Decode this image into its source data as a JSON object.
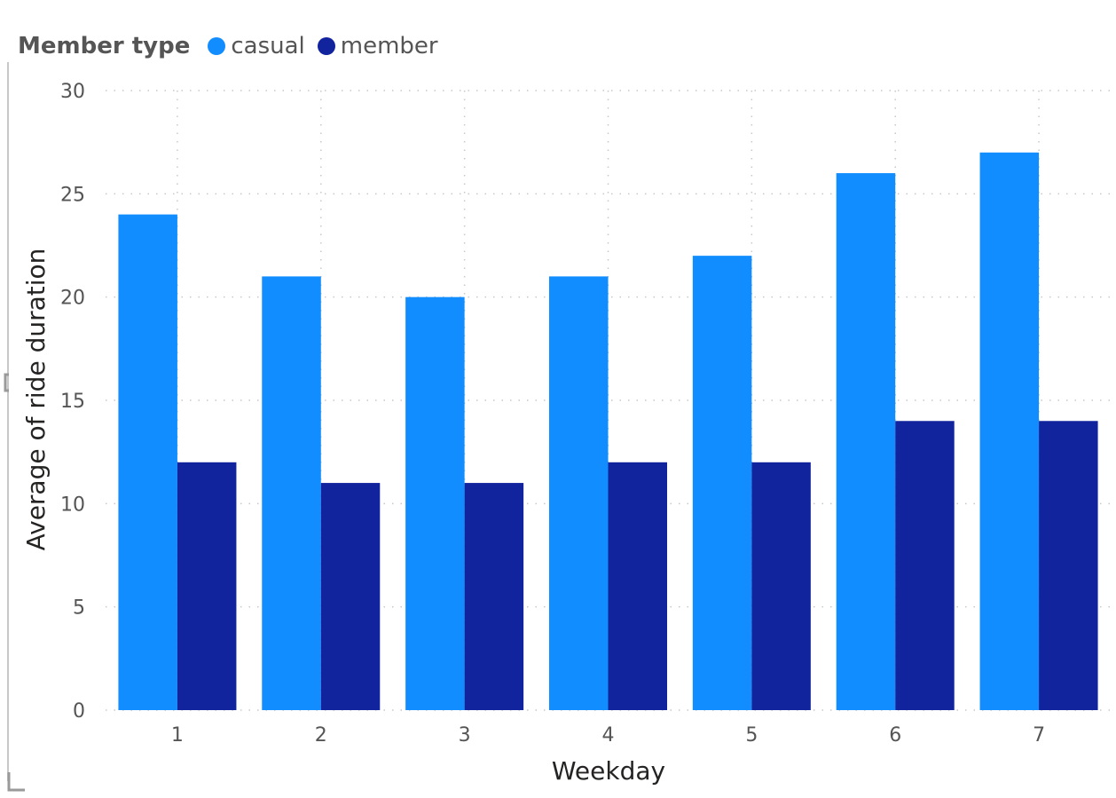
{
  "legend": {
    "title": "Member type",
    "items": [
      {
        "label": "casual",
        "color": "#118DFF",
        "icon": "circle-icon"
      },
      {
        "label": "member",
        "color": "#12239E",
        "icon": "circle-icon"
      }
    ]
  },
  "chart_data": {
    "type": "bar",
    "xlabel": "Weekday",
    "ylabel": "Average of ride duration",
    "categories": [
      "1",
      "2",
      "3",
      "4",
      "5",
      "6",
      "7"
    ],
    "series": [
      {
        "name": "casual",
        "color": "#118DFF",
        "values": [
          24,
          21,
          20,
          21,
          22,
          26,
          27
        ]
      },
      {
        "name": "member",
        "color": "#12239E",
        "values": [
          12,
          11,
          11,
          12,
          12,
          14,
          14
        ]
      }
    ],
    "ylim": [
      0,
      30
    ],
    "yticks": [
      "0",
      "5",
      "10",
      "15",
      "20",
      "25",
      "30"
    ],
    "grid": true,
    "legend_position": "top-left"
  }
}
